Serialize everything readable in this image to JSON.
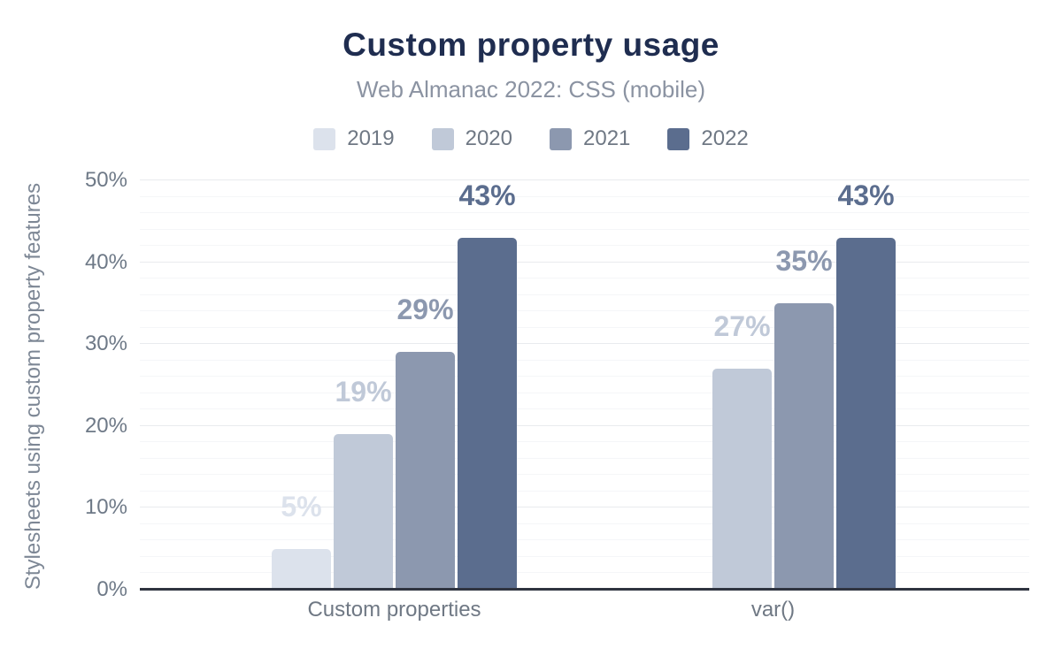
{
  "header": {
    "title": "Custom property usage",
    "subtitle": "Web Almanac 2022: CSS (mobile)"
  },
  "chart_data": {
    "type": "bar",
    "title": "Custom property usage",
    "subtitle": "Web Almanac 2022: CSS (mobile)",
    "xlabel": "",
    "ylabel": "Stylesheets using custom property features",
    "categories": [
      "Custom properties",
      "var()"
    ],
    "series": [
      {
        "name": "2019",
        "color": "#dce2ec",
        "values": [
          5,
          null
        ],
        "labels": [
          "5%",
          null
        ]
      },
      {
        "name": "2020",
        "color": "#c0c9d8",
        "values": [
          19,
          27
        ],
        "labels": [
          "19%",
          "27%"
        ]
      },
      {
        "name": "2021",
        "color": "#8c98af",
        "values": [
          29,
          35
        ],
        "labels": [
          "29%",
          "35%"
        ]
      },
      {
        "name": "2022",
        "color": "#5b6d8e",
        "values": [
          43,
          43
        ],
        "labels": [
          "43%",
          "43%"
        ]
      }
    ],
    "ylim": [
      0,
      50
    ],
    "y_ticks": [
      0,
      10,
      20,
      30,
      40,
      50
    ],
    "y_tick_labels": [
      "0%",
      "10%",
      "20%",
      "30%",
      "40%",
      "50%"
    ],
    "y_minor_step": 2,
    "grid": "major and minor horizontal gridlines",
    "legend_position": "top center",
    "legend_entries": [
      "2019",
      "2020",
      "2021",
      "2022"
    ]
  },
  "colors": {
    "bg": "#ffffff",
    "title": "#1f2d50",
    "subtitle": "#8b93a2",
    "legend-label": "#6f7884",
    "tick-label": "#6e7987",
    "category-label": "#6f7884",
    "axis-title": "#7d8795",
    "baseline": "#2f3440",
    "grid-major": "#e9ebee",
    "grid-minor": "#f5f6f8"
  }
}
